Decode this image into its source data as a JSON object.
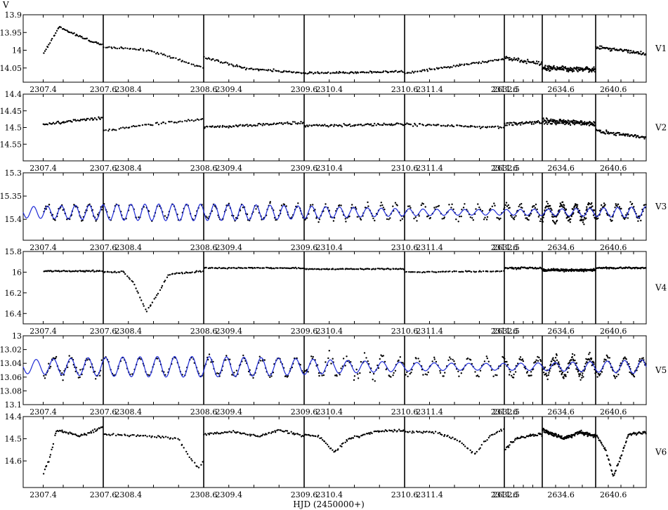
{
  "chart_data": {
    "type": "scatter",
    "ylabel": "V",
    "xlabel": "HJD (2450000+)",
    "nights": [
      {
        "x_ticks": [
          "2307.4",
          "2307.6"
        ]
      },
      {
        "x_ticks": [
          "2308.4",
          "2308.6"
        ]
      },
      {
        "x_ticks": [
          "2309.4",
          "2309.6"
        ]
      },
      {
        "x_ticks": [
          "2310.4",
          "2310.6"
        ]
      },
      {
        "x_ticks": [
          "2311.4",
          "2311.6"
        ]
      },
      {
        "x_ticks": [
          "2632.5"
        ]
      },
      {
        "x_ticks": [
          "2634.6"
        ]
      },
      {
        "x_ticks": [
          "2640.6"
        ]
      }
    ],
    "rows": [
      {
        "name": "V1",
        "ylim": [
          14.09,
          13.9
        ],
        "y_ticks": [
          "13.9",
          "13.95",
          "14",
          "14.05"
        ],
        "fit": false,
        "segments": [
          {
            "s": [
              [
                0.25,
                14.01
              ],
              [
                0.45,
                13.935
              ],
              [
                0.85,
                13.975
              ],
              [
                1.0,
                13.985
              ]
            ],
            "n": 55,
            "noise": 0.004
          },
          {
            "s": [
              [
                0.0,
                13.99
              ],
              [
                0.45,
                14.0
              ],
              [
                1.0,
                14.05
              ]
            ],
            "n": 60,
            "noise": 0.004
          },
          {
            "s": [
              [
                0.0,
                14.02
              ],
              [
                0.4,
                14.05
              ],
              [
                1.0,
                14.065
              ]
            ],
            "n": 75,
            "noise": 0.005
          },
          {
            "s": [
              [
                0.0,
                14.065
              ],
              [
                1.0,
                14.06
              ]
            ],
            "n": 80,
            "noise": 0.004
          },
          {
            "s": [
              [
                0.0,
                14.065
              ],
              [
                1.0,
                14.025
              ]
            ],
            "n": 70,
            "noise": 0.004
          },
          {
            "s": [
              [
                0.0,
                14.02
              ],
              [
                1.0,
                14.04
              ]
            ],
            "n": 45,
            "noise": 0.008
          },
          {
            "s": [
              [
                0.0,
                14.05
              ],
              [
                1.0,
                14.055
              ]
            ],
            "n": 140,
            "noise": 0.01
          },
          {
            "s": [
              [
                0.0,
                13.99
              ],
              [
                1.0,
                14.01
              ]
            ],
            "n": 70,
            "noise": 0.007
          }
        ]
      },
      {
        "name": "V2",
        "ylim": [
          14.6,
          14.4
        ],
        "y_ticks": [
          "14.4",
          "14.45",
          "14.5",
          "14.55"
        ],
        "fit": false,
        "segments": [
          {
            "s": [
              [
                0.25,
                14.49
              ],
              [
                1.0,
                14.47
              ]
            ],
            "n": 55,
            "noise": 0.006
          },
          {
            "s": [
              [
                0.0,
                14.51
              ],
              [
                0.6,
                14.485
              ],
              [
                1.0,
                14.475
              ]
            ],
            "n": 55,
            "noise": 0.006
          },
          {
            "s": [
              [
                0.0,
                14.5
              ],
              [
                1.0,
                14.485
              ]
            ],
            "n": 80,
            "noise": 0.006
          },
          {
            "s": [
              [
                0.0,
                14.495
              ],
              [
                1.0,
                14.49
              ]
            ],
            "n": 80,
            "noise": 0.006
          },
          {
            "s": [
              [
                0.0,
                14.49
              ],
              [
                1.0,
                14.5
              ]
            ],
            "n": 65,
            "noise": 0.006
          },
          {
            "s": [
              [
                0.0,
                14.49
              ],
              [
                1.0,
                14.485
              ]
            ],
            "n": 45,
            "noise": 0.008
          },
          {
            "s": [
              [
                0.0,
                14.48
              ],
              [
                1.0,
                14.49
              ]
            ],
            "n": 140,
            "noise": 0.012
          },
          {
            "s": [
              [
                0.0,
                14.51
              ],
              [
                1.0,
                14.53
              ]
            ],
            "n": 70,
            "noise": 0.008
          }
        ]
      },
      {
        "name": "V3",
        "ylim": [
          15.445,
          15.3
        ],
        "y_ticks": [
          "15.3",
          "15.35",
          "15.4"
        ],
        "fit": true,
        "fit_mean": 15.385,
        "fit_amp": 0.012,
        "fit_cycles": 5.6,
        "segments": [
          {
            "s": [
              [
                0.25,
                15.38
              ],
              [
                1.0,
                15.38
              ]
            ],
            "n": 60,
            "noise": 0.015
          },
          {
            "s": [
              [
                0.0,
                15.38
              ],
              [
                1.0,
                15.38
              ]
            ],
            "n": 55,
            "noise": 0.015
          },
          {
            "s": [
              [
                0.0,
                15.385
              ],
              [
                1.0,
                15.385
              ]
            ],
            "n": 80,
            "noise": 0.015
          },
          {
            "s": [
              [
                0.0,
                15.385
              ],
              [
                1.0,
                15.385
              ]
            ],
            "n": 80,
            "noise": 0.018
          },
          {
            "s": [
              [
                0.0,
                15.385
              ],
              [
                1.0,
                15.385
              ]
            ],
            "n": 70,
            "noise": 0.018
          },
          {
            "s": [
              [
                0.0,
                15.38
              ],
              [
                1.0,
                15.38
              ]
            ],
            "n": 45,
            "noise": 0.02
          },
          {
            "s": [
              [
                0.0,
                15.38
              ],
              [
                1.0,
                15.38
              ]
            ],
            "n": 140,
            "noise": 0.025
          },
          {
            "s": [
              [
                0.0,
                15.385
              ],
              [
                1.0,
                15.385
              ]
            ],
            "n": 70,
            "noise": 0.02
          }
        ]
      },
      {
        "name": "V4",
        "ylim": [
          16.5,
          15.8
        ],
        "y_ticks": [
          "15.8",
          "16",
          "16.2",
          "16.4"
        ],
        "fit": false,
        "segments": [
          {
            "s": [
              [
                0.25,
                15.99
              ],
              [
                1.0,
                15.99
              ]
            ],
            "n": 55,
            "noise": 0.01
          },
          {
            "s": [
              [
                0.0,
                16.0
              ],
              [
                0.2,
                16.0
              ],
              [
                0.3,
                16.1
              ],
              [
                0.43,
                16.38
              ],
              [
                0.55,
                16.2
              ],
              [
                0.65,
                16.02
              ],
              [
                1.0,
                15.99
              ]
            ],
            "n": 70,
            "noise": 0.012
          },
          {
            "s": [
              [
                0.0,
                15.96
              ],
              [
                1.0,
                15.96
              ]
            ],
            "n": 80,
            "noise": 0.008
          },
          {
            "s": [
              [
                0.0,
                15.97
              ],
              [
                1.0,
                15.97
              ]
            ],
            "n": 80,
            "noise": 0.008
          },
          {
            "s": [
              [
                0.0,
                16.0
              ],
              [
                1.0,
                15.99
              ]
            ],
            "n": 60,
            "noise": 0.008
          },
          {
            "s": [
              [
                0.0,
                15.96
              ],
              [
                1.0,
                15.96
              ]
            ],
            "n": 45,
            "noise": 0.015
          },
          {
            "s": [
              [
                0.0,
                15.98
              ],
              [
                1.0,
                15.98
              ]
            ],
            "n": 160,
            "noise": 0.018
          },
          {
            "s": [
              [
                0.0,
                15.96
              ],
              [
                1.0,
                15.96
              ]
            ],
            "n": 70,
            "noise": 0.01
          }
        ]
      },
      {
        "name": "V5",
        "ylim": [
          13.1,
          13.0
        ],
        "y_ticks": [
          "13",
          "13.02",
          "13.04",
          "13.06",
          "13.08",
          "13.1"
        ],
        "fit": true,
        "fit_mean": 13.045,
        "fit_amp": 0.01,
        "fit_cycles": 4.5,
        "segments": [
          {
            "s": [
              [
                0.25,
                13.045
              ],
              [
                1.0,
                13.045
              ]
            ],
            "n": 60,
            "noise": 0.018
          },
          {
            "s": [
              [
                0.0,
                13.045
              ],
              [
                1.0,
                13.045
              ]
            ],
            "n": 60,
            "noise": 0.006
          },
          {
            "s": [
              [
                0.0,
                13.045
              ],
              [
                1.0,
                13.045
              ]
            ],
            "n": 80,
            "noise": 0.015
          },
          {
            "s": [
              [
                0.0,
                13.045
              ],
              [
                1.0,
                13.045
              ]
            ],
            "n": 80,
            "noise": 0.02
          },
          {
            "s": [
              [
                0.0,
                13.045
              ],
              [
                1.0,
                13.045
              ]
            ],
            "n": 70,
            "noise": 0.01
          },
          {
            "s": [
              [
                0.0,
                13.045
              ],
              [
                1.0,
                13.045
              ]
            ],
            "n": 45,
            "noise": 0.01
          },
          {
            "s": [
              [
                0.0,
                13.04
              ],
              [
                1.0,
                13.04
              ]
            ],
            "n": 120,
            "noise": 0.02
          },
          {
            "s": [
              [
                0.0,
                13.045
              ],
              [
                1.0,
                13.045
              ]
            ],
            "n": 70,
            "noise": 0.012
          }
        ]
      },
      {
        "name": "V6",
        "ylim": [
          14.72,
          14.4
        ],
        "y_ticks": [
          "14.4",
          "14.5",
          "14.6"
        ],
        "fit": false,
        "segments": [
          {
            "s": [
              [
                0.25,
                14.66
              ],
              [
                0.32,
                14.6
              ],
              [
                0.42,
                14.46
              ],
              [
                0.55,
                14.47
              ],
              [
                0.7,
                14.49
              ],
              [
                0.85,
                14.47
              ],
              [
                1.0,
                14.445
              ]
            ],
            "n": 60,
            "noise": 0.008
          },
          {
            "s": [
              [
                0.0,
                14.48
              ],
              [
                0.5,
                14.49
              ],
              [
                0.75,
                14.5
              ],
              [
                0.85,
                14.58
              ],
              [
                0.95,
                14.63
              ],
              [
                1.0,
                14.6
              ]
            ],
            "n": 60,
            "noise": 0.008
          },
          {
            "s": [
              [
                0.0,
                14.48
              ],
              [
                0.3,
                14.47
              ],
              [
                0.55,
                14.49
              ],
              [
                0.75,
                14.46
              ],
              [
                1.0,
                14.49
              ]
            ],
            "n": 80,
            "noise": 0.008
          },
          {
            "s": [
              [
                0.0,
                14.48
              ],
              [
                0.15,
                14.49
              ],
              [
                0.3,
                14.56
              ],
              [
                0.45,
                14.5
              ],
              [
                0.7,
                14.47
              ],
              [
                1.0,
                14.46
              ]
            ],
            "n": 80,
            "noise": 0.008
          },
          {
            "s": [
              [
                0.0,
                14.47
              ],
              [
                0.3,
                14.47
              ],
              [
                0.55,
                14.51
              ],
              [
                0.7,
                14.57
              ],
              [
                0.85,
                14.49
              ],
              [
                1.0,
                14.455
              ]
            ],
            "n": 65,
            "noise": 0.008
          },
          {
            "s": [
              [
                0.0,
                14.55
              ],
              [
                0.3,
                14.5
              ],
              [
                1.0,
                14.48
              ]
            ],
            "n": 45,
            "noise": 0.01
          },
          {
            "s": [
              [
                0.0,
                14.46
              ],
              [
                0.4,
                14.5
              ],
              [
                0.7,
                14.47
              ],
              [
                1.0,
                14.49
              ]
            ],
            "n": 150,
            "noise": 0.012
          },
          {
            "s": [
              [
                0.0,
                14.48
              ],
              [
                0.2,
                14.55
              ],
              [
                0.35,
                14.67
              ],
              [
                0.5,
                14.58
              ],
              [
                0.65,
                14.48
              ],
              [
                1.0,
                14.47
              ]
            ],
            "n": 70,
            "noise": 0.01
          }
        ]
      }
    ]
  }
}
